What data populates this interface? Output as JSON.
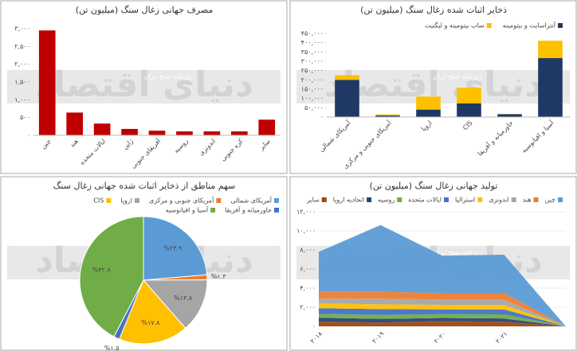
{
  "watermark": "دنیای اقتصاد",
  "watermark_sub": "روزنامه صبح ایران",
  "chart_data": [
    {
      "type": "bar",
      "title": "مصرف جهانی زغال سنگ (میلیون تن)",
      "categories": [
        "چین",
        "هند",
        "ایالات متحده",
        "ژاپن",
        "آفریقای جنوبی",
        "روسیه",
        "اندونزی",
        "کره جنوبی",
        "سایر"
      ],
      "values": [
        2950,
        640,
        330,
        180,
        130,
        110,
        110,
        110,
        440
      ],
      "color": "#c00000",
      "ylim": [
        0,
        3000
      ],
      "yticks": [
        {
          "value": 0,
          "label": "۰"
        },
        {
          "value": 500,
          "label": "۵۰۰"
        },
        {
          "value": 1000,
          "label": "۱,۰۰۰"
        },
        {
          "value": 1500,
          "label": "۱,۵۰۰"
        },
        {
          "value": 2000,
          "label": "۲,۰۰۰"
        },
        {
          "value": 2500,
          "label": "۲,۵۰۰"
        },
        {
          "value": 3000,
          "label": "۳,۰۰۰"
        }
      ]
    },
    {
      "type": "stacked_bar",
      "title": "ذخایر اثبات شده زغال سنگ (میلیون تن)",
      "categories": [
        "آمریکای شمالی",
        "آمریکای جنوبی و مرکزی",
        "اروپا",
        "CIS",
        "خاورمیانه و آفریقا",
        "آسیا و اقیانوسیه"
      ],
      "series": [
        {
          "name": "آنتراسایت و بیتومینه",
          "color": "#1f3864",
          "values": [
            200000,
            8000,
            40000,
            73000,
            15000,
            317000
          ]
        },
        {
          "name": "ساب بیتومینه و لیگنیت",
          "color": "#ffc000",
          "values": [
            25000,
            6000,
            70000,
            85000,
            1000,
            94000
          ]
        }
      ],
      "ylim": [
        0,
        450000
      ],
      "yticks": [
        {
          "value": 0,
          "label": "۰"
        },
        {
          "value": 50000,
          "label": "۵۰,۰۰۰"
        },
        {
          "value": 100000,
          "label": "۱۰۰,۰۰۰"
        },
        {
          "value": 150000,
          "label": "۱۵۰,۰۰۰"
        },
        {
          "value": 200000,
          "label": "۲۰۰,۰۰۰"
        },
        {
          "value": 250000,
          "label": "۲۵۰,۰۰۰"
        },
        {
          "value": 300000,
          "label": "۳۰۰,۰۰۰"
        },
        {
          "value": 350000,
          "label": "۳۵۰,۰۰۰"
        },
        {
          "value": 400000,
          "label": "۴۰۰,۰۰۰"
        },
        {
          "value": 450000,
          "label": "۴۵۰,۰۰۰"
        }
      ]
    },
    {
      "type": "pie",
      "title": "سهم مناطق از ذخایر اثبات شده جهانی زغال سنگ",
      "categories": [
        "آمریکای شمالی",
        "آمریکای جنوبی و مرکزی",
        "اروپا",
        "CIS",
        "خاورمیانه و آفریقا",
        "آسیا و اقیانوسیه"
      ],
      "values": [
        23.9,
        1.3,
        13.8,
        17.8,
        1.5,
        42.8
      ],
      "value_labels": [
        "%۲۳.۹",
        "%۱.۳",
        "%۱۳.۸",
        "%۱۷.۸",
        "%۱.۵",
        "%۴۲.۸"
      ],
      "colors": [
        "#5b9bd5",
        "#ed7d31",
        "#a5a5a5",
        "#ffc000",
        "#4472c4",
        "#70ad47"
      ]
    },
    {
      "type": "stacked_area",
      "title": "تولید جهانی زغال سنگ (میلیون تن)",
      "categories": [
        "۲۰۱۸",
        "۲۰۱۹",
        "۲۰۲۰",
        "۲۰۲۱",
        null
      ],
      "series": [
        {
          "name": "چین",
          "color": "#5b9bd5",
          "values": [
            4200,
            7000,
            3900,
            4000,
            0
          ]
        },
        {
          "name": "هند",
          "color": "#ed7d31",
          "values": [
            700,
            700,
            700,
            700,
            0
          ]
        },
        {
          "name": "اندونزی",
          "color": "#a5a5a5",
          "values": [
            500,
            600,
            550,
            560,
            0
          ]
        },
        {
          "name": "استرالیا",
          "color": "#ffc000",
          "values": [
            500,
            500,
            480,
            470,
            0
          ]
        },
        {
          "name": "ایالات متحده",
          "color": "#4472c4",
          "values": [
            600,
            600,
            500,
            520,
            0
          ]
        },
        {
          "name": "روسیه",
          "color": "#70ad47",
          "values": [
            400,
            420,
            400,
            430,
            0
          ]
        },
        {
          "name": "اتحادیه اروپا",
          "color": "#264478",
          "values": [
            400,
            380,
            330,
            340,
            0
          ]
        },
        {
          "name": "سایر",
          "color": "#9e480e",
          "values": [
            500,
            400,
            540,
            480,
            0
          ]
        }
      ],
      "ylim": [
        0,
        12000
      ],
      "grid": true,
      "yticks": [
        {
          "value": 0,
          "label": "۰"
        },
        {
          "value": 2000,
          "label": "۲,۰۰۰"
        },
        {
          "value": 4000,
          "label": "۴,۰۰۰"
        },
        {
          "value": 6000,
          "label": "۶,۰۰۰"
        },
        {
          "value": 8000,
          "label": "۸,۰۰۰"
        },
        {
          "value": 10000,
          "label": "۱۰,۰۰۰"
        },
        {
          "value": 12000,
          "label": "۱۲,۰۰۰"
        }
      ]
    }
  ]
}
